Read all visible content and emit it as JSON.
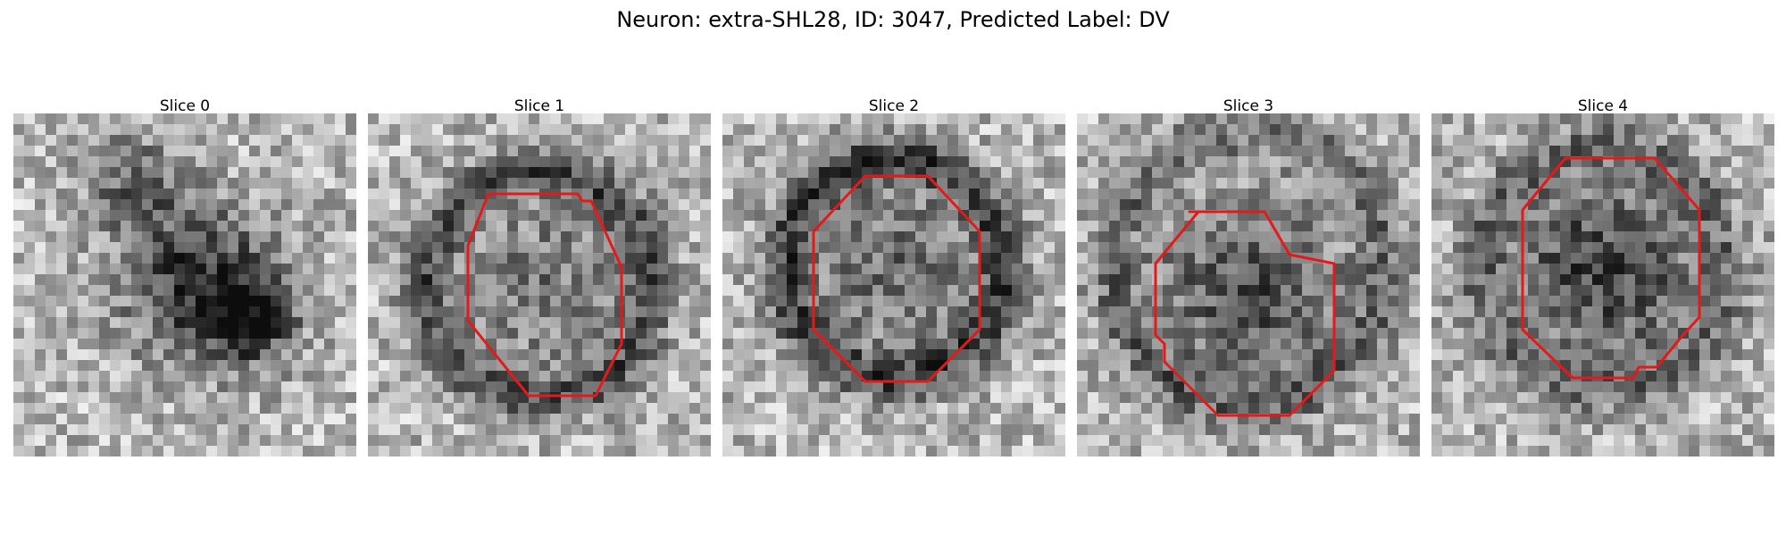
{
  "figure": {
    "title": "Neuron: extra-SHL28, ID: 3047, Predicted Label: DV"
  },
  "panels": [
    {
      "title": "Slice 0",
      "has_contour": false,
      "texture": "mottled grayscale microscopy patch, dark blob center-right"
    },
    {
      "title": "Slice 1",
      "has_contour": true,
      "texture": "grayscale patch with darker ring around a mid-gray cell body"
    },
    {
      "title": "Slice 2",
      "has_contour": true,
      "texture": "grayscale patch with dark ring around a mid-gray cell body"
    },
    {
      "title": "Slice 3",
      "has_contour": true,
      "texture": "grayscale patch with dark cell body and dark flecks"
    },
    {
      "title": "Slice 4",
      "has_contour": true,
      "texture": "grayscale patch with dark cell body, bright background"
    }
  ],
  "colors": {
    "contour": "#e31a1c",
    "background": "#ffffff"
  }
}
